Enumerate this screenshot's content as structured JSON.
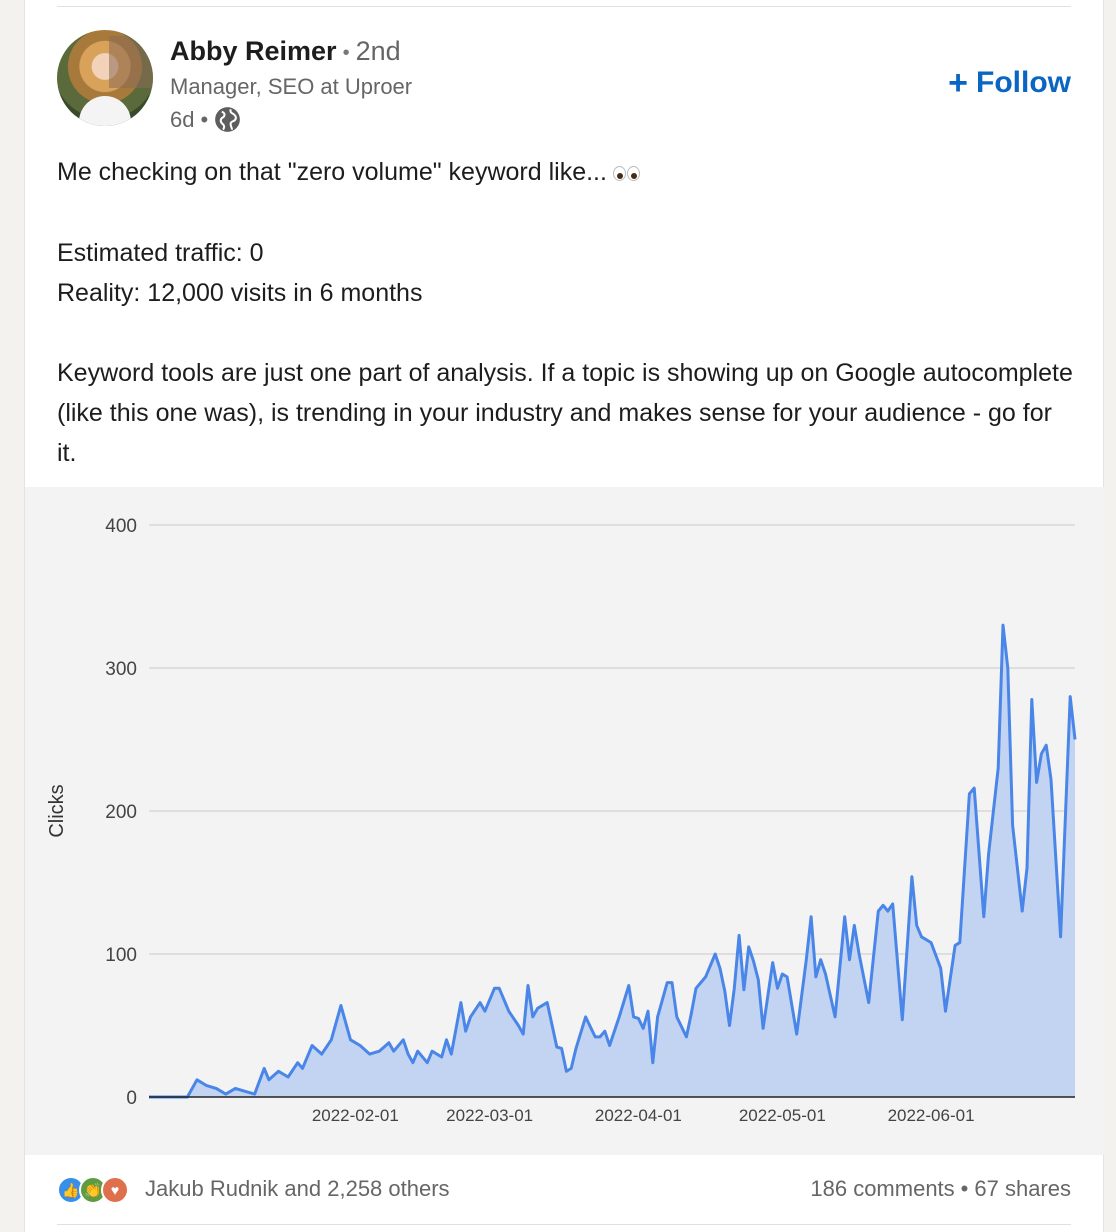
{
  "post": {
    "author": {
      "name": "Abby Reimer",
      "degree": "2nd",
      "headline": "Manager, SEO at Uproer",
      "time": "6d",
      "visibility_icon": "globe-icon"
    },
    "follow_label": "Follow",
    "text": {
      "line1": "Me checking on that \"zero volume\" keyword like...",
      "emoji": "eyes",
      "line2": "Estimated traffic: 0",
      "line3": "Reality: 12,000 visits in 6 months",
      "paragraph": "Keyword tools are just one part of analysis. If a topic is showing up on Google autocomplete (like this one was), is trending in your industry and makes sense for your audience - go for it."
    },
    "social": {
      "reactions": [
        "like-icon",
        "celebrate-icon",
        "love-icon"
      ],
      "reactors": "Jakub Rudnik and 2,258 others",
      "comments": "186 comments",
      "separator": "•",
      "shares": "67 shares"
    }
  },
  "colors": {
    "accent": "#0a66c2",
    "line": "#4a86e8",
    "area": "#c3d4f3"
  },
  "chart_data": {
    "type": "area",
    "title": "",
    "xlabel": "",
    "ylabel": "Clicks",
    "ylim": [
      0,
      400
    ],
    "yticks": [
      0,
      100,
      200,
      300,
      400
    ],
    "xticks": [
      "2022-02-01",
      "2022-03-01",
      "2022-04-01",
      "2022-05-01",
      "2022-06-01"
    ],
    "grid": true,
    "series": [
      {
        "values": [
          [
            -12,
            0
          ],
          [
            -7,
            0
          ],
          [
            -4,
            0
          ],
          [
            -2,
            12
          ],
          [
            0,
            8
          ],
          [
            2,
            6
          ],
          [
            4,
            2
          ],
          [
            6,
            6
          ],
          [
            8,
            4
          ],
          [
            10,
            2
          ],
          [
            12,
            20
          ],
          [
            13,
            12
          ],
          [
            15,
            18
          ],
          [
            17,
            14
          ],
          [
            19,
            24
          ],
          [
            20,
            20
          ],
          [
            22,
            36
          ],
          [
            24,
            30
          ],
          [
            26,
            40
          ],
          [
            28,
            64
          ],
          [
            30,
            40
          ],
          [
            32,
            36
          ],
          [
            34,
            30
          ],
          [
            36,
            32
          ],
          [
            38,
            38
          ],
          [
            39,
            32
          ],
          [
            41,
            40
          ],
          [
            42,
            30
          ],
          [
            43,
            24
          ],
          [
            44,
            32
          ],
          [
            46,
            24
          ],
          [
            47,
            32
          ],
          [
            49,
            28
          ],
          [
            50,
            40
          ],
          [
            51,
            30
          ],
          [
            53,
            66
          ],
          [
            54,
            46
          ],
          [
            55,
            56
          ],
          [
            57,
            66
          ],
          [
            58,
            60
          ],
          [
            60,
            76
          ],
          [
            61,
            76
          ],
          [
            63,
            60
          ],
          [
            65,
            50
          ],
          [
            66,
            44
          ],
          [
            67,
            78
          ],
          [
            68,
            56
          ],
          [
            69,
            62
          ],
          [
            71,
            66
          ],
          [
            73,
            35
          ],
          [
            74,
            34
          ],
          [
            75,
            18
          ],
          [
            76,
            20
          ],
          [
            77,
            34
          ],
          [
            79,
            56
          ],
          [
            81,
            42
          ],
          [
            82,
            42
          ],
          [
            83,
            46
          ],
          [
            84,
            36
          ],
          [
            86,
            56
          ],
          [
            88,
            78
          ],
          [
            89,
            56
          ],
          [
            90,
            55
          ],
          [
            91,
            48
          ],
          [
            92,
            60
          ],
          [
            93,
            24
          ],
          [
            94,
            56
          ],
          [
            96,
            80
          ],
          [
            97,
            80
          ],
          [
            98,
            56
          ],
          [
            100,
            42
          ],
          [
            101,
            58
          ],
          [
            102,
            76
          ],
          [
            104,
            84
          ],
          [
            106,
            100
          ],
          [
            107,
            90
          ],
          [
            108,
            74
          ],
          [
            109,
            50
          ],
          [
            110,
            76
          ],
          [
            111,
            113
          ],
          [
            112,
            75
          ],
          [
            113,
            105
          ],
          [
            114,
            95
          ],
          [
            115,
            82
          ],
          [
            116,
            48
          ],
          [
            118,
            94
          ],
          [
            119,
            76
          ],
          [
            120,
            86
          ],
          [
            121,
            84
          ],
          [
            123,
            44
          ],
          [
            125,
            96
          ],
          [
            126,
            126
          ],
          [
            127,
            84
          ],
          [
            128,
            96
          ],
          [
            129,
            86
          ],
          [
            131,
            56
          ],
          [
            133,
            126
          ],
          [
            134,
            96
          ],
          [
            135,
            120
          ],
          [
            136,
            100
          ],
          [
            138,
            66
          ],
          [
            140,
            130
          ],
          [
            141,
            134
          ],
          [
            142,
            130
          ],
          [
            143,
            135
          ],
          [
            145,
            54
          ],
          [
            147,
            154
          ],
          [
            148,
            120
          ],
          [
            149,
            112
          ],
          [
            151,
            108
          ],
          [
            153,
            90
          ],
          [
            154,
            60
          ],
          [
            156,
            106
          ],
          [
            157,
            108
          ],
          [
            159,
            212
          ],
          [
            160,
            216
          ],
          [
            162,
            126
          ],
          [
            163,
            170
          ],
          [
            165,
            230
          ],
          [
            166,
            330
          ],
          [
            167,
            300
          ],
          [
            168,
            190
          ],
          [
            170,
            130
          ],
          [
            171,
            160
          ],
          [
            172,
            278
          ],
          [
            173,
            220
          ],
          [
            174,
            240
          ],
          [
            175,
            246
          ],
          [
            176,
            222
          ],
          [
            178,
            112
          ],
          [
            180,
            280
          ],
          [
            181,
            250
          ]
        ]
      }
    ]
  }
}
